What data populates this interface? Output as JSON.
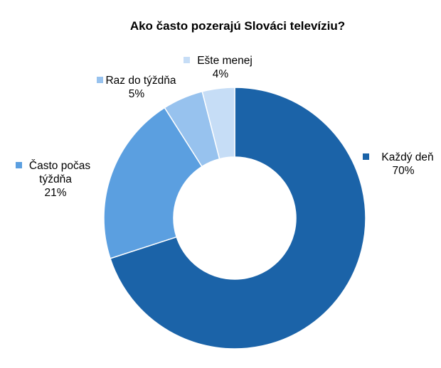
{
  "chart_data": {
    "type": "pie",
    "variant": "donut",
    "title": "Ako často pozerajú Slováci televíziu?",
    "slices": [
      {
        "label": "Každý deň",
        "value": 70,
        "value_label": "70%",
        "color": "#1b63a8"
      },
      {
        "label": "Často počas týždňa",
        "value": 21,
        "value_label": "21%",
        "color": "#5b9fe0",
        "label_lines": [
          "Často počas",
          "týždňa"
        ]
      },
      {
        "label": "Raz do týždňa",
        "value": 5,
        "value_label": "5%",
        "color": "#97c2ee"
      },
      {
        "label": "Ešte menej",
        "value": 4,
        "value_label": "4%",
        "color": "#c6ddf6"
      }
    ],
    "legend": "none",
    "data_labels": "outside-with-swatch"
  }
}
